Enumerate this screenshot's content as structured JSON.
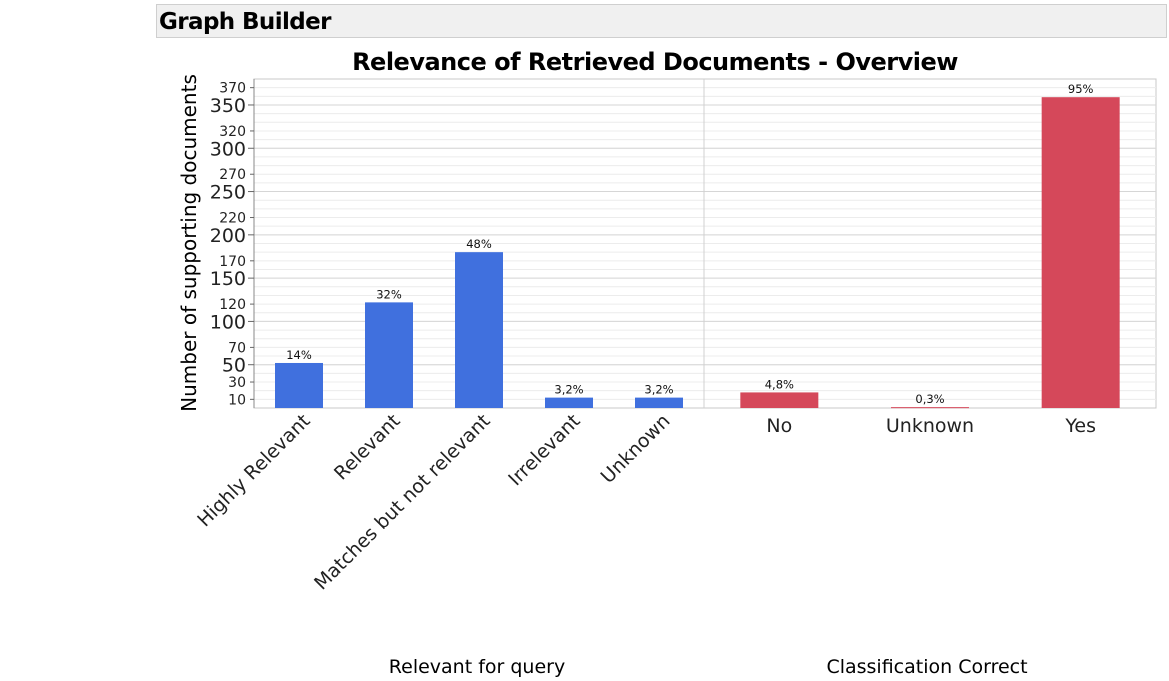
{
  "window": {
    "title": "Graph Builder"
  },
  "chart_data": {
    "type": "bar",
    "title": "Relevance of Retrieved Documents - Overview",
    "ylabel": "Number of supporting documents",
    "ylim": [
      0,
      380
    ],
    "y_ticks_major": [
      50,
      100,
      150,
      200,
      250,
      300,
      350
    ],
    "y_ticks_minor": [
      10,
      30,
      70,
      120,
      170,
      220,
      270,
      320,
      370
    ],
    "grid": true,
    "panels": [
      {
        "xlabel": "Relevant for query",
        "color": "#4070de",
        "categories": [
          "Highly Relevant",
          "Relevant",
          "Matches but not relevant",
          "Irrelevant",
          "Unknown"
        ],
        "values": [
          52,
          122,
          180,
          12,
          12
        ],
        "labels": [
          "14%",
          "32%",
          "48%",
          "3,2%",
          "3,2%"
        ],
        "tick_rotation": -45
      },
      {
        "xlabel": "Classification Correct",
        "color": "#d5485a",
        "categories": [
          "No",
          "Unknown",
          "Yes"
        ],
        "values": [
          18,
          1,
          359
        ],
        "labels": [
          "4,8%",
          "0,3%",
          "95%"
        ],
        "tick_rotation": 0
      }
    ]
  }
}
